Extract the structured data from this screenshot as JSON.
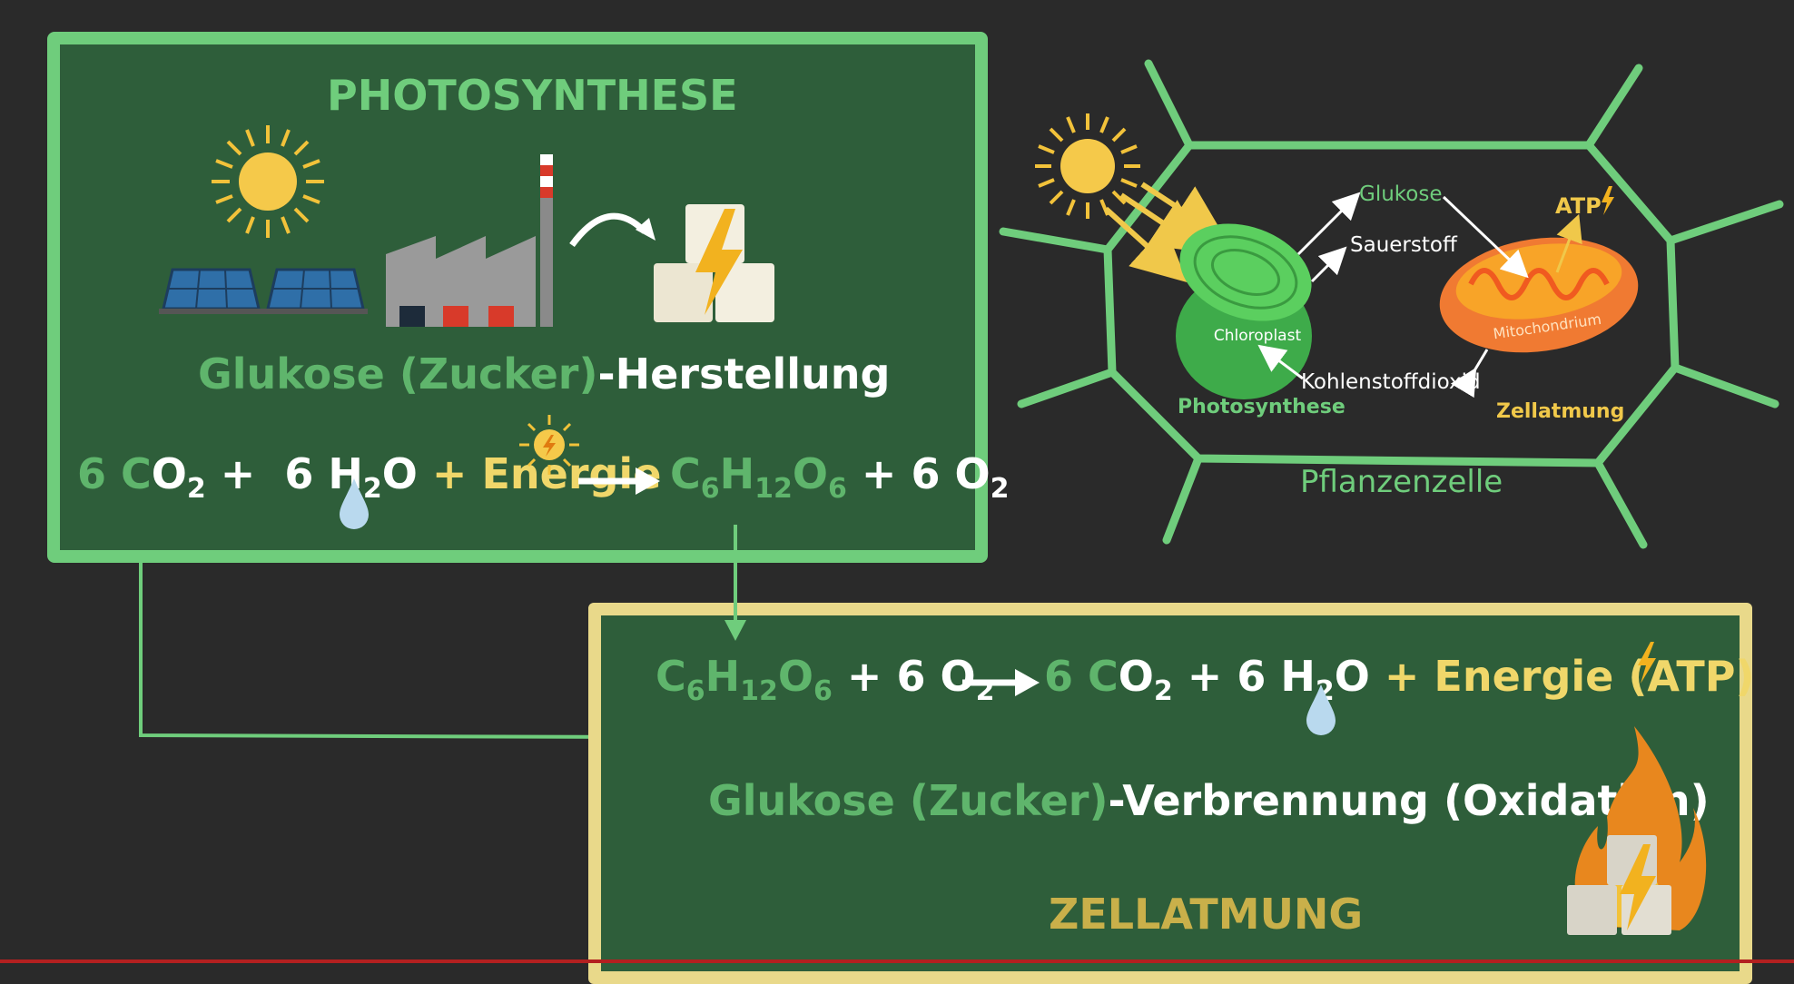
{
  "photosynthesis": {
    "heading": "PHOTOSYNTHESE",
    "production_prefix": "Glukose (Zucker)",
    "production_suffix": "-Herstellung",
    "equation": {
      "coef_co2": "6 C",
      "o2a": "O",
      "o2a_sub": "2",
      "plus1": "+",
      "h2o": "6 H",
      "h2o_sub": "2",
      "h2o_o": "O",
      "energy": "+ Energie",
      "glucose_c": "C",
      "glucose_c_sub": "6",
      "glucose_h": "H",
      "glucose_h_sub": "12",
      "glucose_o": "O",
      "glucose_o_sub": "6",
      "plus_o2": "+ 6 O",
      "o2_sub": "2"
    }
  },
  "respiration": {
    "heading": "ZELLATMUNG",
    "combustion_prefix": "Glukose (Zucker)",
    "combustion_suffix": "-Verbrennung (Oxidation)",
    "equation": {
      "glucose_c": "C",
      "glucose_c_sub": "6",
      "glucose_h": "H",
      "glucose_h_sub": "12",
      "glucose_o": "O",
      "glucose_o_sub": "6",
      "plus_o2": "+ 6 O",
      "o2_sub": "2",
      "coef_co2": "6 C",
      "co2_o": "O",
      "co2_sub": "2",
      "plus_h2o": "+ 6 H",
      "h2o_sub": "2",
      "h2o_o": "O",
      "energy": "+ Energie (ATP",
      "energy_close": ")"
    }
  },
  "cell": {
    "title": "Pflanzenzelle",
    "glukose": "Glukose",
    "sauerstoff": "Sauerstoff",
    "atp": "ATP",
    "chloroplast": "Chloroplast",
    "mitochondrium": "Mitochondrium",
    "kohlenstoffdioxid": "Kohlenstoffdioxid",
    "photosynthese": "Photosynthese",
    "zellatmung": "Zellatmung"
  },
  "colors": {
    "background": "#2a2a2a",
    "panel": "#2e5e3a",
    "photosynthesis_border": "#6fcd7c",
    "respiration_border": "#e9d98a",
    "green_text": "#5fb56c",
    "yellow_text": "#f0d76a",
    "arrow": "#6fcd7c"
  }
}
